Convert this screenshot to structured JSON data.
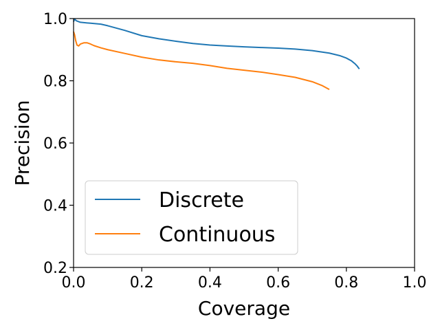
{
  "chart_data": {
    "type": "line",
    "xlabel": "Coverage",
    "ylabel": "Precision",
    "xlim": [
      0.0,
      1.0
    ],
    "ylim": [
      0.2,
      1.0
    ],
    "xticks": [
      "0.0",
      "0.2",
      "0.4",
      "0.6",
      "0.8",
      "1.0"
    ],
    "yticks": [
      "0.2",
      "0.4",
      "0.6",
      "0.8",
      "1.0"
    ],
    "grid": false,
    "legend_position": "lower-left",
    "series": [
      {
        "name": "Discrete",
        "color": "#1f77b4",
        "x": [
          0.0,
          0.003,
          0.008,
          0.02,
          0.05,
          0.08,
          0.1,
          0.15,
          0.2,
          0.25,
          0.3,
          0.35,
          0.4,
          0.45,
          0.5,
          0.55,
          0.6,
          0.65,
          0.7,
          0.75,
          0.78,
          0.8,
          0.815,
          0.825,
          0.832,
          0.838
        ],
        "y": [
          0.99,
          0.998,
          0.993,
          0.988,
          0.985,
          0.982,
          0.977,
          0.962,
          0.945,
          0.935,
          0.927,
          0.92,
          0.915,
          0.912,
          0.909,
          0.907,
          0.905,
          0.902,
          0.897,
          0.889,
          0.881,
          0.873,
          0.864,
          0.855,
          0.847,
          0.838
        ]
      },
      {
        "name": "Continuous",
        "color": "#ff7f0e",
        "x": [
          0.0,
          0.003,
          0.006,
          0.01,
          0.015,
          0.02,
          0.03,
          0.04,
          0.05,
          0.06,
          0.08,
          0.1,
          0.15,
          0.2,
          0.25,
          0.3,
          0.35,
          0.4,
          0.45,
          0.5,
          0.55,
          0.6,
          0.65,
          0.7,
          0.73,
          0.75
        ],
        "y": [
          0.958,
          0.948,
          0.93,
          0.915,
          0.912,
          0.918,
          0.922,
          0.922,
          0.918,
          0.913,
          0.906,
          0.9,
          0.888,
          0.876,
          0.867,
          0.861,
          0.856,
          0.849,
          0.84,
          0.834,
          0.828,
          0.82,
          0.811,
          0.797,
          0.784,
          0.772
        ]
      }
    ]
  }
}
